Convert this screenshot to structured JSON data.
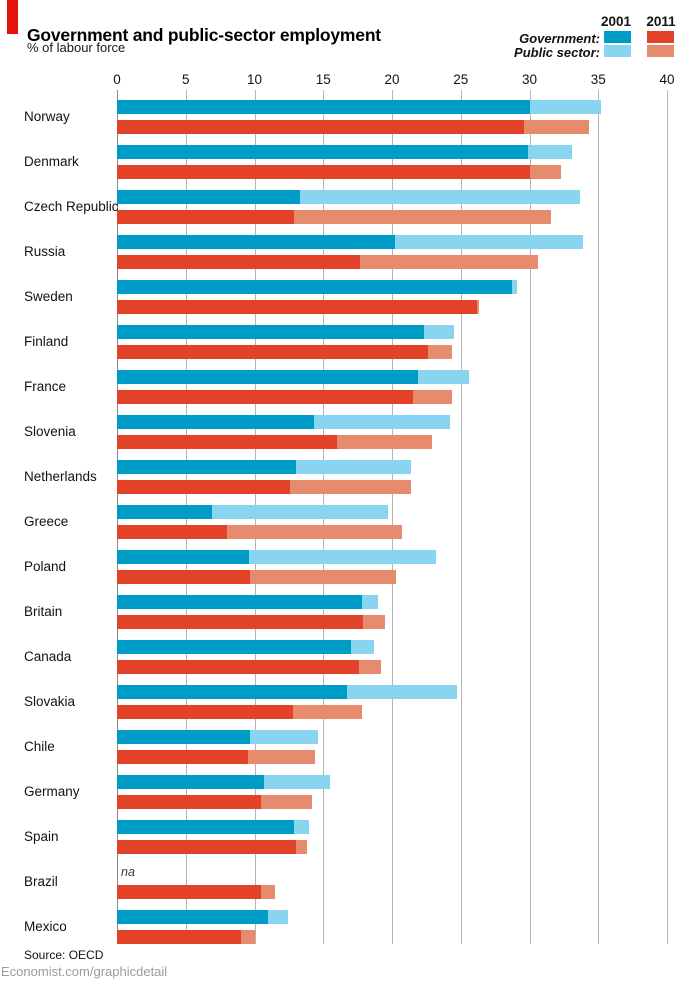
{
  "header": {
    "title": "Government and public-sector employment",
    "subtitle": "% of labour force"
  },
  "footer": {
    "source": "Source: OECD",
    "credit": "Economist.com/graphicdetail"
  },
  "colors": {
    "brand_red": "#E3120B",
    "government_2001": "#009CC8",
    "public_sector_2001": "#89D4F0",
    "government_2011": "#E24227",
    "public_sector_2011": "#E68B6D",
    "gridline": "#B4B4B4",
    "zero_line": "#8A8A8A"
  },
  "chart_data": {
    "type": "bar",
    "orientation": "horizontal",
    "title": "Government and public-sector employment",
    "subtitle": "% of labour force",
    "unit": "% of labour force",
    "xlim": [
      0,
      40
    ],
    "xticks": [
      0,
      5,
      10,
      15,
      20,
      25,
      30,
      35,
      40
    ],
    "grid": true,
    "legend_position": "top-right",
    "legend": {
      "col_2001": "2001",
      "col_2011": "2011",
      "row_government": "Government:",
      "row_public_sector": "Public sector:"
    },
    "na_label": "na",
    "series_description": "Each country has two bars (2001 top, 2011 bottom); dark segment = government employment, light segment extends to total public-sector employment.",
    "countries": [
      {
        "name": "Norway",
        "government_2001": 30.0,
        "public_sector_total_2001": 35.2,
        "government_2011": 29.6,
        "public_sector_total_2011": 34.3
      },
      {
        "name": "Denmark",
        "government_2001": 29.9,
        "public_sector_total_2001": 33.1,
        "government_2011": 30.0,
        "public_sector_total_2011": 32.3
      },
      {
        "name": "Czech Republic",
        "government_2001": 13.3,
        "public_sector_total_2001": 33.7,
        "government_2011": 12.9,
        "public_sector_total_2011": 31.6
      },
      {
        "name": "Russia",
        "government_2001": 20.2,
        "public_sector_total_2001": 33.9,
        "government_2011": 17.7,
        "public_sector_total_2011": 30.6
      },
      {
        "name": "Sweden",
        "government_2001": 28.7,
        "public_sector_total_2001": 29.1,
        "government_2011": 26.2,
        "public_sector_total_2011": 26.3
      },
      {
        "name": "Finland",
        "government_2001": 22.3,
        "public_sector_total_2001": 24.5,
        "government_2011": 22.6,
        "public_sector_total_2011": 24.4
      },
      {
        "name": "France",
        "government_2001": 21.9,
        "public_sector_total_2001": 25.6,
        "government_2011": 21.5,
        "public_sector_total_2011": 24.4
      },
      {
        "name": "Slovenia",
        "government_2001": 14.3,
        "public_sector_total_2001": 24.2,
        "government_2011": 16.0,
        "public_sector_total_2011": 22.9
      },
      {
        "name": "Netherlands",
        "government_2001": 13.0,
        "public_sector_total_2001": 21.4,
        "government_2011": 12.6,
        "public_sector_total_2011": 21.4
      },
      {
        "name": "Greece",
        "government_2001": 6.9,
        "public_sector_total_2001": 19.7,
        "government_2011": 8.0,
        "public_sector_total_2011": 20.7
      },
      {
        "name": "Poland",
        "government_2001": 9.6,
        "public_sector_total_2001": 23.2,
        "government_2011": 9.7,
        "public_sector_total_2011": 20.3
      },
      {
        "name": "Britain",
        "government_2001": 17.8,
        "public_sector_total_2001": 19.0,
        "government_2011": 17.9,
        "public_sector_total_2011": 19.5
      },
      {
        "name": "Canada",
        "government_2001": 17.0,
        "public_sector_total_2001": 18.7,
        "government_2011": 17.6,
        "public_sector_total_2011": 19.2
      },
      {
        "name": "Slovakia",
        "government_2001": 16.7,
        "public_sector_total_2001": 24.7,
        "government_2011": 12.8,
        "public_sector_total_2011": 17.8
      },
      {
        "name": "Chile",
        "government_2001": 9.7,
        "public_sector_total_2001": 14.6,
        "government_2011": 9.5,
        "public_sector_total_2011": 14.4
      },
      {
        "name": "Germany",
        "government_2001": 10.7,
        "public_sector_total_2001": 15.5,
        "government_2011": 10.5,
        "public_sector_total_2011": 14.2
      },
      {
        "name": "Spain",
        "government_2001": 12.9,
        "public_sector_total_2001": 14.0,
        "government_2011": 13.0,
        "public_sector_total_2011": 13.8
      },
      {
        "name": "Brazil",
        "government_2001": null,
        "public_sector_total_2001": null,
        "government_2011": 10.5,
        "public_sector_total_2011": 11.5
      },
      {
        "name": "Mexico",
        "government_2001": 11.0,
        "public_sector_total_2001": 12.4,
        "government_2011": 9.0,
        "public_sector_total_2011": 10.0
      }
    ]
  }
}
